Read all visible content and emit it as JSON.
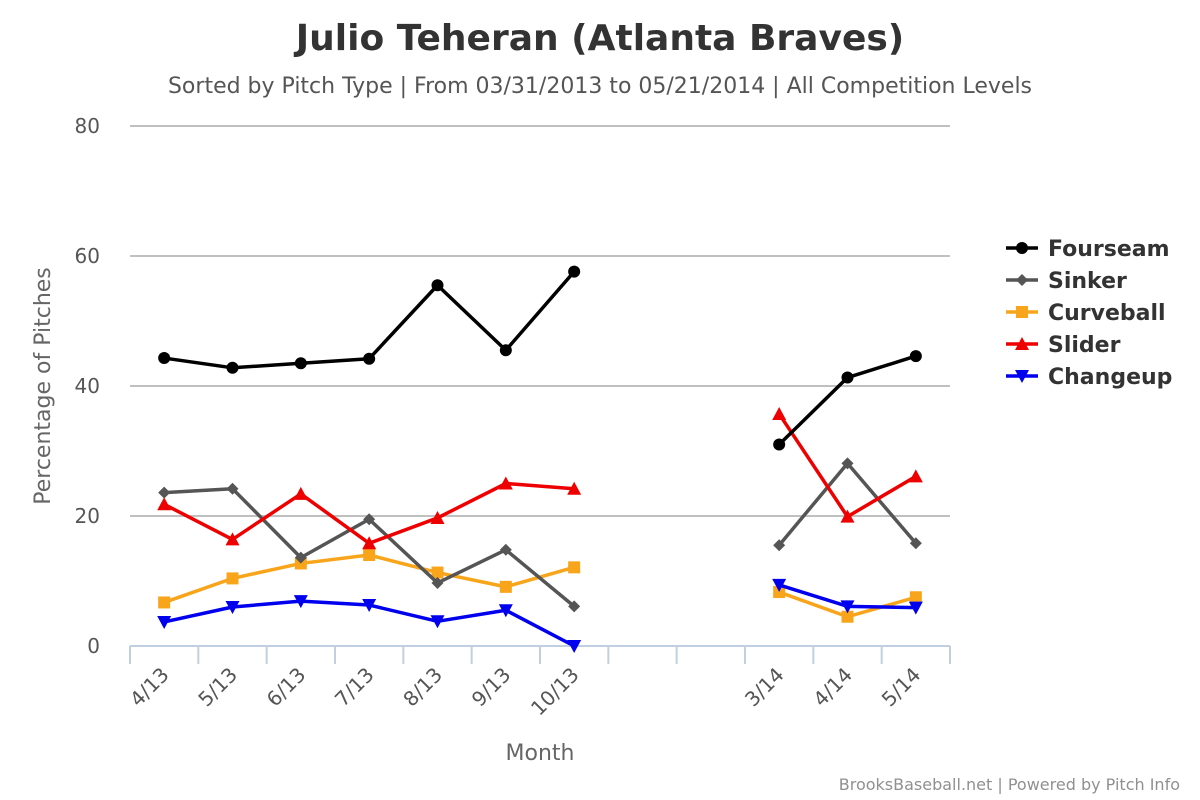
{
  "chart_data": {
    "type": "line",
    "title": "Julio Teheran (Atlanta Braves)",
    "subtitle": "Sorted by Pitch Type | From 03/31/2013 to 05/21/2014 | All Competition Levels",
    "xlabel": "Month",
    "ylabel": "Percentage of Pitches",
    "ylim": [
      0,
      80
    ],
    "yticks": [
      "0",
      "20",
      "40",
      "60",
      "80"
    ],
    "categories": [
      "4/13",
      "5/13",
      "6/13",
      "7/13",
      "8/13",
      "9/13",
      "10/13",
      "",
      "",
      "3/14",
      "4/14",
      "5/14"
    ],
    "grid": true,
    "legend_position": "right",
    "series": [
      {
        "name": "Fourseam",
        "color": "#000000",
        "marker": "circle",
        "values": [
          44.3,
          42.8,
          43.5,
          44.2,
          55.5,
          45.5,
          57.6,
          null,
          null,
          31.0,
          41.3,
          44.6
        ]
      },
      {
        "name": "Sinker",
        "color": "#555555",
        "marker": "diamond",
        "values": [
          23.6,
          24.2,
          13.6,
          19.5,
          9.7,
          14.8,
          6.1,
          null,
          null,
          15.5,
          28.1,
          15.8
        ]
      },
      {
        "name": "Curveball",
        "color": "#f8a51b",
        "marker": "square",
        "values": [
          6.7,
          10.4,
          12.7,
          14.0,
          11.3,
          9.1,
          12.1,
          null,
          null,
          8.3,
          4.5,
          7.5
        ]
      },
      {
        "name": "Slider",
        "color": "#ee0000",
        "marker": "triangle",
        "values": [
          21.8,
          16.4,
          23.4,
          15.8,
          19.7,
          25.0,
          24.2,
          null,
          null,
          35.7,
          19.9,
          26.1
        ]
      },
      {
        "name": "Changeup",
        "color": "#0000ee",
        "marker": "triangle-down",
        "values": [
          3.7,
          6.0,
          6.9,
          6.3,
          3.8,
          5.5,
          0.0,
          null,
          null,
          9.4,
          6.1,
          5.9
        ]
      }
    ]
  },
  "credit": "BrooksBaseball.net | Powered by Pitch Info"
}
